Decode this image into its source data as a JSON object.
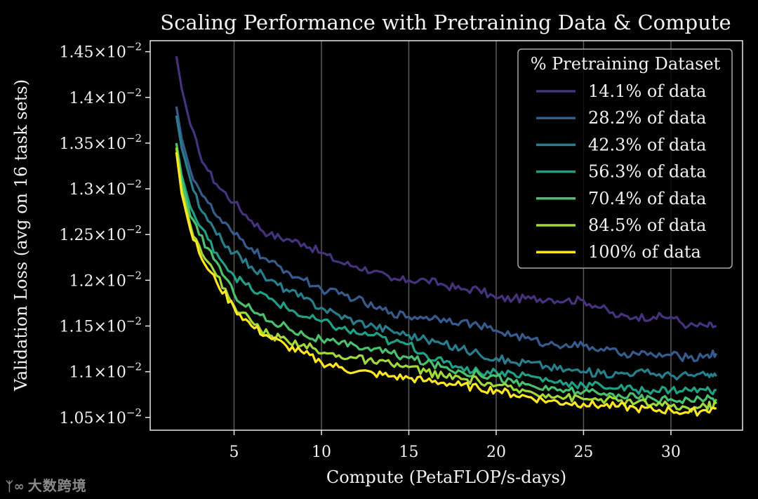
{
  "chart_data": {
    "type": "line",
    "title": "Scaling Performance with Pretraining Data & Compute",
    "xlabel": "Compute (PetaFLOP/s-days)",
    "ylabel": "Validation Loss (avg on 16 task sets)",
    "xlim": [
      0.2,
      34.1
    ],
    "ylim": [
      0.01036,
      0.01462
    ],
    "grid": "vertical",
    "x_ticks": [
      5,
      10,
      15,
      20,
      25,
      30
    ],
    "x_tick_labels": [
      "5",
      "10",
      "15",
      "20",
      "25",
      "30"
    ],
    "y_ticks": [
      0.0105,
      0.011,
      0.0115,
      0.012,
      0.0125,
      0.013,
      0.0135,
      0.014,
      0.0145
    ],
    "y_tick_mantissas": [
      "1.05",
      "1.1",
      "1.15",
      "1.2",
      "1.25",
      "1.3",
      "1.35",
      "1.4",
      "1.45"
    ],
    "y_tick_base": "10",
    "y_tick_exponent": "−2",
    "y_tick_times": "×",
    "legend": {
      "title": "% Pretraining Dataset",
      "placement": "upper-right"
    },
    "series": [
      {
        "name": "14.1% of data",
        "color": "#46327e",
        "x": [
          1.7,
          2.0,
          2.5,
          3.0,
          3.5,
          4.0,
          5.0,
          6.0,
          7.0,
          8.0,
          9.0,
          10.0,
          11.0,
          12.0,
          13.0,
          14.0,
          15.0,
          16.0,
          17.0,
          18.0,
          19.0,
          20.0,
          21.0,
          22.0,
          23.0,
          24.0,
          25.0,
          26.0,
          27.0,
          28.0,
          29.0,
          30.0,
          31.0,
          32.0,
          32.6
        ],
        "y": [
          0.01445,
          0.0141,
          0.0137,
          0.0134,
          0.0132,
          0.01305,
          0.01285,
          0.01265,
          0.0125,
          0.01245,
          0.0124,
          0.0123,
          0.0122,
          0.01215,
          0.0121,
          0.012,
          0.012,
          0.012,
          0.01195,
          0.0119,
          0.0119,
          0.0118,
          0.0118,
          0.0118,
          0.0118,
          0.01178,
          0.01178,
          0.0117,
          0.0116,
          0.0116,
          0.0116,
          0.0116,
          0.0115,
          0.0115,
          0.0115
        ]
      },
      {
        "name": "28.2% of data",
        "color": "#365c8d",
        "x": [
          1.7,
          2.0,
          2.5,
          3.0,
          3.5,
          4.0,
          5.0,
          6.0,
          7.0,
          8.0,
          9.0,
          10.0,
          11.0,
          12.0,
          13.0,
          14.0,
          15.0,
          16.0,
          17.0,
          18.0,
          19.0,
          20.0,
          21.0,
          22.0,
          23.0,
          24.0,
          25.0,
          26.0,
          27.0,
          28.0,
          29.0,
          30.0,
          31.0,
          32.0,
          32.6
        ],
        "y": [
          0.0139,
          0.01355,
          0.0132,
          0.013,
          0.01285,
          0.0127,
          0.0125,
          0.01235,
          0.0122,
          0.0121,
          0.012,
          0.0119,
          0.01185,
          0.0118,
          0.0117,
          0.01165,
          0.0116,
          0.0116,
          0.01158,
          0.01155,
          0.0115,
          0.01145,
          0.0114,
          0.01135,
          0.0113,
          0.0113,
          0.01128,
          0.01125,
          0.0112,
          0.0112,
          0.01118,
          0.01118,
          0.01115,
          0.01118,
          0.0112
        ]
      },
      {
        "name": "42.3% of data",
        "color": "#277f8e",
        "x": [
          1.7,
          2.0,
          2.5,
          3.0,
          3.5,
          4.0,
          5.0,
          6.0,
          7.0,
          8.0,
          9.0,
          10.0,
          11.0,
          12.0,
          13.0,
          14.0,
          15.0,
          16.0,
          17.0,
          18.0,
          19.0,
          20.0,
          21.0,
          22.0,
          23.0,
          24.0,
          25.0,
          26.0,
          27.0,
          28.0,
          29.0,
          30.0,
          31.0,
          32.0,
          32.6
        ],
        "y": [
          0.0138,
          0.01345,
          0.0131,
          0.0128,
          0.01265,
          0.0125,
          0.0123,
          0.01215,
          0.012,
          0.0119,
          0.0118,
          0.0117,
          0.01162,
          0.01155,
          0.0115,
          0.01145,
          0.0114,
          0.01135,
          0.0113,
          0.01125,
          0.0112,
          0.01115,
          0.0111,
          0.0111,
          0.01105,
          0.01102,
          0.011,
          0.01098,
          0.01098,
          0.011,
          0.01098,
          0.01096,
          0.01096,
          0.01096,
          0.01095
        ]
      },
      {
        "name": "56.3% of data",
        "color": "#1fa187",
        "x": [
          1.7,
          2.0,
          2.5,
          3.0,
          3.5,
          4.0,
          5.0,
          6.0,
          7.0,
          8.0,
          9.0,
          10.0,
          11.0,
          12.0,
          13.0,
          14.0,
          15.0,
          16.0,
          17.0,
          18.0,
          19.0,
          20.0,
          21.0,
          22.0,
          23.0,
          24.0,
          25.0,
          26.0,
          27.0,
          28.0,
          29.0,
          30.0,
          31.0,
          32.0,
          32.6
        ],
        "y": [
          0.0135,
          0.01315,
          0.0128,
          0.0126,
          0.01245,
          0.0123,
          0.01205,
          0.0119,
          0.0118,
          0.0117,
          0.0116,
          0.01155,
          0.01148,
          0.01142,
          0.0114,
          0.01132,
          0.0113,
          0.01118,
          0.0111,
          0.01105,
          0.011,
          0.011,
          0.01098,
          0.01095,
          0.0109,
          0.01088,
          0.01085,
          0.01085,
          0.01082,
          0.0108,
          0.0108,
          0.0108,
          0.0108,
          0.0108,
          0.0108
        ]
      },
      {
        "name": "70.4% of data",
        "color": "#4ac16d",
        "x": [
          1.7,
          2.0,
          2.5,
          3.0,
          3.5,
          4.0,
          5.0,
          6.0,
          7.0,
          8.0,
          9.0,
          10.0,
          11.0,
          12.0,
          13.0,
          14.0,
          15.0,
          16.0,
          17.0,
          18.0,
          19.0,
          20.0,
          21.0,
          22.0,
          23.0,
          24.0,
          25.0,
          26.0,
          27.0,
          28.0,
          29.0,
          30.0,
          31.0,
          32.0,
          32.6
        ],
        "y": [
          0.0135,
          0.0131,
          0.0127,
          0.0125,
          0.01235,
          0.0122,
          0.01185,
          0.01168,
          0.01155,
          0.0115,
          0.0114,
          0.01135,
          0.0113,
          0.01128,
          0.01125,
          0.0112,
          0.01115,
          0.0111,
          0.01105,
          0.011,
          0.01098,
          0.01095,
          0.01088,
          0.01085,
          0.0108,
          0.0108,
          0.01078,
          0.01075,
          0.01075,
          0.01072,
          0.0107,
          0.0107,
          0.0107,
          0.0107,
          0.0107
        ]
      },
      {
        "name": "84.5% of data",
        "color": "#a0da39",
        "x": [
          1.7,
          2.0,
          2.5,
          3.0,
          3.5,
          4.0,
          5.0,
          6.0,
          7.0,
          8.0,
          9.0,
          10.0,
          11.0,
          12.0,
          13.0,
          14.0,
          15.0,
          16.0,
          17.0,
          18.0,
          19.0,
          20.0,
          21.0,
          22.0,
          23.0,
          24.0,
          25.0,
          26.0,
          27.0,
          28.0,
          29.0,
          30.0,
          31.0,
          32.0,
          32.6
        ],
        "y": [
          0.01345,
          0.013,
          0.0126,
          0.01238,
          0.0122,
          0.01205,
          0.01172,
          0.01155,
          0.0114,
          0.01135,
          0.0113,
          0.0112,
          0.01118,
          0.01115,
          0.0111,
          0.01108,
          0.01105,
          0.011,
          0.01095,
          0.01092,
          0.0109,
          0.01085,
          0.0108,
          0.01078,
          0.01075,
          0.01072,
          0.0107,
          0.0107,
          0.01068,
          0.01066,
          0.01065,
          0.01062,
          0.0106,
          0.01062,
          0.01065
        ]
      },
      {
        "name": "100% of data",
        "color": "#fde725",
        "x": [
          1.7,
          2.0,
          2.5,
          3.0,
          3.5,
          4.0,
          5.0,
          6.0,
          7.0,
          8.0,
          9.0,
          10.0,
          11.0,
          12.0,
          13.0,
          14.0,
          15.0,
          16.0,
          17.0,
          18.0,
          19.0,
          20.0,
          21.0,
          22.0,
          23.0,
          24.0,
          25.0,
          26.0,
          27.0,
          28.0,
          29.0,
          30.0,
          31.0,
          32.0,
          32.6
        ],
        "y": [
          0.0134,
          0.01295,
          0.01255,
          0.0123,
          0.01212,
          0.01198,
          0.0117,
          0.0115,
          0.01138,
          0.01128,
          0.0112,
          0.0111,
          0.01105,
          0.011,
          0.01098,
          0.01095,
          0.01093,
          0.0109,
          0.01088,
          0.01085,
          0.01082,
          0.0108,
          0.01075,
          0.01072,
          0.01068,
          0.01066,
          0.01065,
          0.01063,
          0.01062,
          0.0106,
          0.01058,
          0.01058,
          0.01055,
          0.01058,
          0.0106
        ]
      }
    ]
  },
  "watermark": {
    "logo": "ᛉ∞",
    "text": "大数跨境"
  }
}
